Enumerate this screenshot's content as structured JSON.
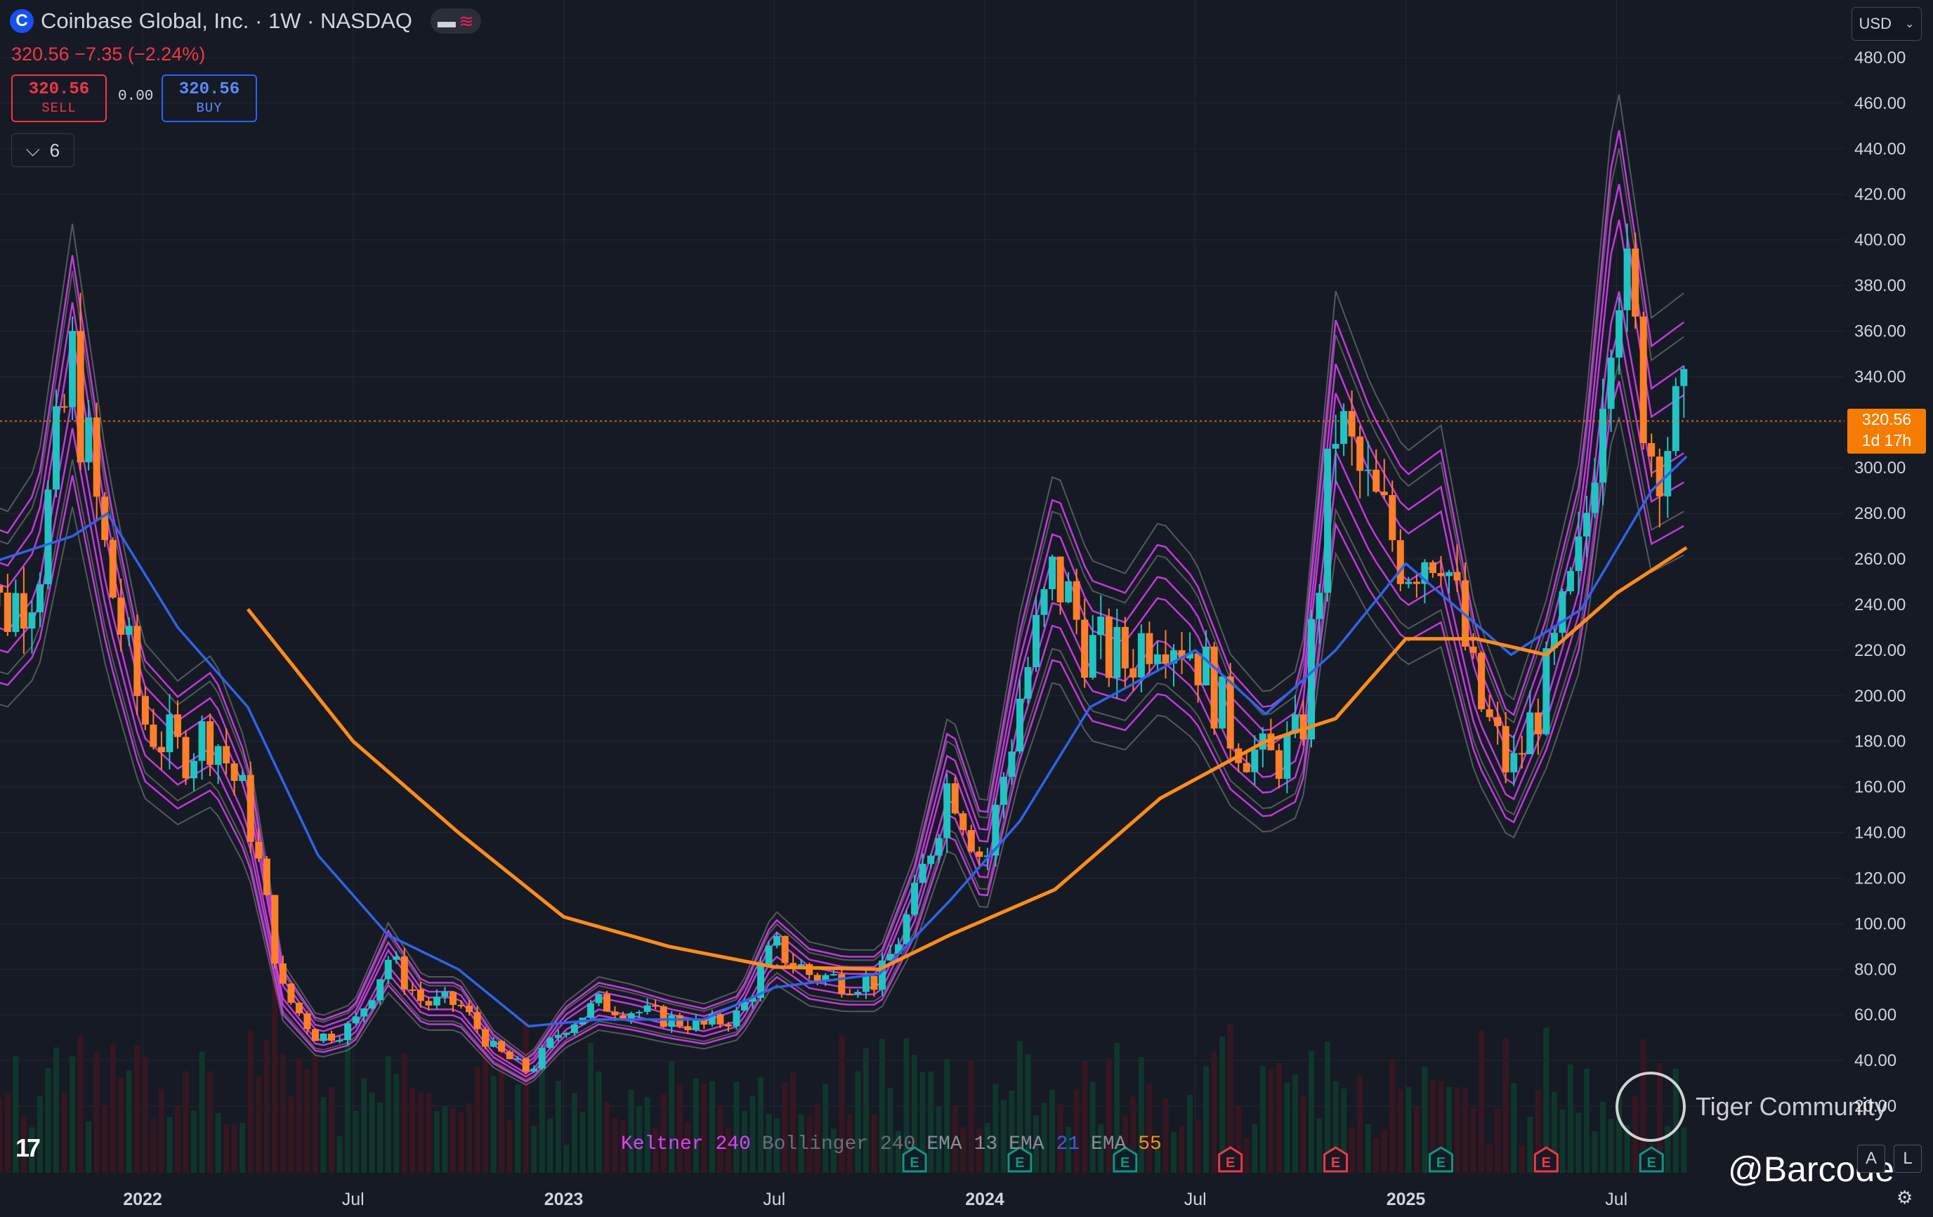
{
  "header": {
    "logo_letter": "C",
    "title": "Coinbase Global, Inc. · 1W · NASDAQ",
    "quote": "320.56 −7.35 (−2.24%)",
    "sell_price": "320.56",
    "sell_label": "SELL",
    "spread": "0.00",
    "buy_price": "320.56",
    "buy_label": "BUY",
    "indicator_count": "6",
    "currency": "USD"
  },
  "legend": {
    "keltner_label": "Keltner",
    "keltner_value": "240",
    "bollinger_label": "Bollinger",
    "bollinger_value": "240",
    "ema1_label": "EMA",
    "ema1_value": "13",
    "ema2_label": "EMA",
    "ema2_value": "21",
    "ema3_label": "EMA",
    "ema3_value": "55"
  },
  "price_badge": {
    "price": "320.56",
    "countdown": "1d 17h"
  },
  "buttons": {
    "a": "A",
    "l": "L"
  },
  "watermark": {
    "brand": "Tiger Community",
    "handle": "@Barcode"
  },
  "colors": {
    "bg": "#161a25",
    "up": "#22c3c3",
    "down": "#ff7f2a",
    "keltner": "#e040fb",
    "bollinger": "#8a8a8a",
    "ema21": "#2f63e8",
    "ema55": "#ff8c1a",
    "current": "#f57c00",
    "earnings_up": "#089981",
    "earnings_down": "#f23645"
  },
  "chart_data": {
    "type": "candlestick",
    "interval": "1W",
    "ylim": [
      0,
      490
    ],
    "yticks": [
      20,
      40,
      60,
      80,
      100,
      120,
      140,
      160,
      180,
      200,
      220,
      240,
      260,
      280,
      300,
      320,
      340,
      360,
      380,
      400,
      420,
      440,
      460,
      480
    ],
    "ytick_labels": [
      "20.00",
      "40.00",
      "60.00",
      "80.00",
      "100.00",
      "120.00",
      "140.00",
      "160.00",
      "180.00",
      "200.00",
      "220.00",
      "240.00",
      "260.00",
      "280.00",
      "300.00",
      "320.00",
      "340.00",
      "360.00",
      "380.00",
      "400.00",
      "420.00",
      "440.00",
      "460.00",
      "480.00"
    ],
    "xticks": [
      {
        "label": "2022",
        "date": "2022-01",
        "bold": true
      },
      {
        "label": "Jul",
        "date": "2022-07",
        "bold": false
      },
      {
        "label": "2023",
        "date": "2023-01",
        "bold": true
      },
      {
        "label": "Jul",
        "date": "2023-07",
        "bold": false
      },
      {
        "label": "2024",
        "date": "2024-01",
        "bold": true
      },
      {
        "label": "Jul",
        "date": "2024-07",
        "bold": false
      },
      {
        "label": "2025",
        "date": "2025-01",
        "bold": true
      },
      {
        "label": "Jul",
        "date": "2025-07",
        "bold": false
      }
    ],
    "current_price": 320.56,
    "close_path": [
      {
        "date": "2021-08",
        "close": 290
      },
      {
        "date": "2021-09",
        "close": 235
      },
      {
        "date": "2021-10",
        "close": 255
      },
      {
        "date": "2021-11",
        "close": 345
      },
      {
        "date": "2021-12",
        "close": 255
      },
      {
        "date": "2022-01",
        "close": 190
      },
      {
        "date": "2022-02",
        "close": 175
      },
      {
        "date": "2022-03",
        "close": 185
      },
      {
        "date": "2022-04",
        "close": 150
      },
      {
        "date": "2022-05",
        "close": 70
      },
      {
        "date": "2022-06",
        "close": 50
      },
      {
        "date": "2022-07",
        "close": 55
      },
      {
        "date": "2022-08",
        "close": 85
      },
      {
        "date": "2022-09",
        "close": 65
      },
      {
        "date": "2022-10",
        "close": 65
      },
      {
        "date": "2022-11",
        "close": 45
      },
      {
        "date": "2022-12",
        "close": 35
      },
      {
        "date": "2023-01",
        "close": 55
      },
      {
        "date": "2023-02",
        "close": 65
      },
      {
        "date": "2023-03",
        "close": 62
      },
      {
        "date": "2023-04",
        "close": 58
      },
      {
        "date": "2023-05",
        "close": 55
      },
      {
        "date": "2023-06",
        "close": 60
      },
      {
        "date": "2023-07",
        "close": 90
      },
      {
        "date": "2023-08",
        "close": 78
      },
      {
        "date": "2023-09",
        "close": 75
      },
      {
        "date": "2023-10",
        "close": 75
      },
      {
        "date": "2023-11",
        "close": 110
      },
      {
        "date": "2023-12",
        "close": 165
      },
      {
        "date": "2024-01",
        "close": 125
      },
      {
        "date": "2024-02",
        "close": 200
      },
      {
        "date": "2024-03",
        "close": 255
      },
      {
        "date": "2024-04",
        "close": 220
      },
      {
        "date": "2024-05",
        "close": 215
      },
      {
        "date": "2024-06",
        "close": 235
      },
      {
        "date": "2024-07",
        "close": 220
      },
      {
        "date": "2024-08",
        "close": 185
      },
      {
        "date": "2024-09",
        "close": 170
      },
      {
        "date": "2024-10",
        "close": 180
      },
      {
        "date": "2024-11",
        "close": 320
      },
      {
        "date": "2024-12",
        "close": 285
      },
      {
        "date": "2025-01",
        "close": 260
      },
      {
        "date": "2025-02",
        "close": 270
      },
      {
        "date": "2025-03",
        "close": 200
      },
      {
        "date": "2025-04",
        "close": 165
      },
      {
        "date": "2025-05",
        "close": 205
      },
      {
        "date": "2025-06",
        "close": 260
      },
      {
        "date": "2025-07",
        "close": 400
      },
      {
        "date": "2025-08",
        "close": 310
      },
      {
        "date": "2025-09",
        "close": 320
      }
    ],
    "ema_21_path": [
      {
        "date": "2021-08",
        "v": 255
      },
      {
        "date": "2021-11",
        "v": 270
      },
      {
        "date": "2021-12",
        "v": 280
      },
      {
        "date": "2022-02",
        "v": 230
      },
      {
        "date": "2022-04",
        "v": 195
      },
      {
        "date": "2022-06",
        "v": 130
      },
      {
        "date": "2022-08",
        "v": 95
      },
      {
        "date": "2022-10",
        "v": 80
      },
      {
        "date": "2022-12",
        "v": 55
      },
      {
        "date": "2023-02",
        "v": 58
      },
      {
        "date": "2023-05",
        "v": 58
      },
      {
        "date": "2023-07",
        "v": 72
      },
      {
        "date": "2023-10",
        "v": 78
      },
      {
        "date": "2023-12",
        "v": 110
      },
      {
        "date": "2024-02",
        "v": 145
      },
      {
        "date": "2024-04",
        "v": 195
      },
      {
        "date": "2024-07",
        "v": 220
      },
      {
        "date": "2024-09",
        "v": 192
      },
      {
        "date": "2024-11",
        "v": 220
      },
      {
        "date": "2025-01",
        "v": 258
      },
      {
        "date": "2025-04",
        "v": 218
      },
      {
        "date": "2025-06",
        "v": 238
      },
      {
        "date": "2025-08",
        "v": 290
      },
      {
        "date": "2025-09",
        "v": 305
      }
    ],
    "ema_55_path": [
      {
        "date": "2022-04",
        "v": 238
      },
      {
        "date": "2022-07",
        "v": 180
      },
      {
        "date": "2022-10",
        "v": 140
      },
      {
        "date": "2023-01",
        "v": 103
      },
      {
        "date": "2023-04",
        "v": 90
      },
      {
        "date": "2023-07",
        "v": 81
      },
      {
        "date": "2023-10",
        "v": 80
      },
      {
        "date": "2023-12",
        "v": 95
      },
      {
        "date": "2024-03",
        "v": 115
      },
      {
        "date": "2024-06",
        "v": 155
      },
      {
        "date": "2024-09",
        "v": 180
      },
      {
        "date": "2024-11",
        "v": 190
      },
      {
        "date": "2025-01",
        "v": 225
      },
      {
        "date": "2025-03",
        "v": 225
      },
      {
        "date": "2025-05",
        "v": 218
      },
      {
        "date": "2025-07",
        "v": 245
      },
      {
        "date": "2025-09",
        "v": 265
      }
    ],
    "earnings_markers": [
      {
        "date": "2023-11",
        "result": "up"
      },
      {
        "date": "2024-02",
        "result": "up"
      },
      {
        "date": "2024-05",
        "result": "up"
      },
      {
        "date": "2024-08",
        "result": "down"
      },
      {
        "date": "2024-11",
        "result": "down"
      },
      {
        "date": "2025-02",
        "result": "up"
      },
      {
        "date": "2025-05",
        "result": "down"
      },
      {
        "date": "2025-08",
        "result": "up"
      }
    ]
  }
}
